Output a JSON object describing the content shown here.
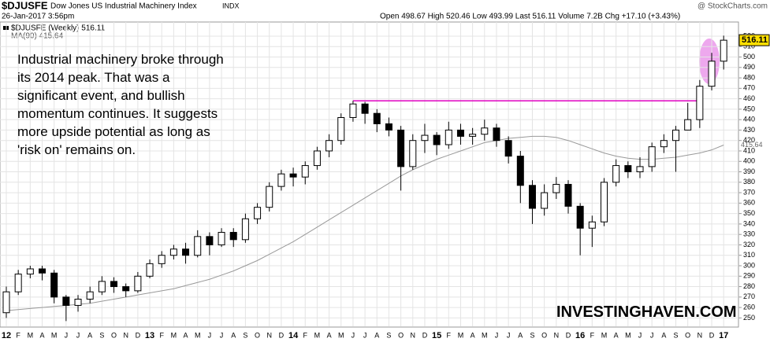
{
  "chart_data": {
    "type": "candlestick",
    "title": "$DJUSFE",
    "subtitle": "Dow Jones US Industrial Machinery Index",
    "exchange": "INDX",
    "date": "26-Jan-2017 3:56pm",
    "quote": "Open 498.67  High 520.46  Low 493.99  Last 516.11  Volume 7.2B  Chg +17.10 (+3.43%)",
    "credit": "@ StockCharts.com",
    "legend": [
      "$DJUSFE (Weekly) 516.11",
      "MA(90) 415.64"
    ],
    "annotation": [
      "Industrial machinery broke through",
      "its 2014 peak. That was a",
      "significant event, and bullish",
      "momentum continues. It suggests",
      "more upside potential as long as",
      "'risk on' remains on."
    ],
    "watermark": "INVESTINGHAVEN.COM",
    "categories": [
      "12",
      "F",
      "M",
      "A",
      "M",
      "J",
      "J",
      "A",
      "S",
      "O",
      "N",
      "D",
      "13",
      "F",
      "M",
      "A",
      "M",
      "J",
      "J",
      "A",
      "S",
      "O",
      "N",
      "D",
      "14",
      "F",
      "M",
      "A",
      "M",
      "J",
      "J",
      "A",
      "S",
      "O",
      "N",
      "D",
      "15",
      "F",
      "M",
      "A",
      "M",
      "J",
      "J",
      "A",
      "S",
      "O",
      "N",
      "D",
      "16",
      "F",
      "M",
      "A",
      "M",
      "J",
      "J",
      "A",
      "S",
      "O",
      "N",
      "D",
      "17"
    ],
    "open": [
      255,
      275,
      292,
      297,
      293,
      270,
      262,
      268,
      275,
      285,
      280,
      276,
      290,
      302,
      310,
      316,
      310,
      328,
      320,
      332,
      325,
      345,
      356,
      376,
      388,
      385,
      396,
      410,
      420,
      442,
      455,
      446,
      436,
      430,
      395,
      420,
      425,
      416,
      430,
      424,
      426,
      432,
      420,
      405,
      377,
      355,
      370,
      378,
      357,
      336,
      342,
      380,
      396,
      390,
      395,
      414,
      420,
      430,
      440,
      472,
      496
    ],
    "high": [
      280,
      296,
      300,
      300,
      296,
      272,
      272,
      280,
      290,
      289,
      283,
      294,
      306,
      314,
      320,
      322,
      334,
      332,
      336,
      336,
      350,
      360,
      380,
      392,
      394,
      400,
      414,
      426,
      446,
      458,
      457,
      450,
      442,
      434,
      426,
      436,
      428,
      438,
      436,
      432,
      440,
      436,
      424,
      410,
      382,
      378,
      385,
      382,
      360,
      348,
      384,
      402,
      400,
      404,
      418,
      426,
      434,
      456,
      478,
      504,
      520.46
    ],
    "low": [
      250,
      272,
      288,
      286,
      264,
      247,
      256,
      264,
      272,
      274,
      270,
      274,
      288,
      298,
      306,
      302,
      308,
      310,
      318,
      318,
      322,
      340,
      352,
      372,
      376,
      378,
      392,
      404,
      416,
      438,
      436,
      428,
      424,
      372,
      392,
      408,
      406,
      412,
      416,
      416,
      420,
      414,
      398,
      360,
      340,
      348,
      364,
      350,
      310,
      318,
      338,
      376,
      384,
      384,
      390,
      408,
      390,
      430,
      432,
      468,
      488
    ],
    "close": [
      275,
      292,
      297,
      293,
      270,
      262,
      268,
      275,
      285,
      280,
      276,
      290,
      302,
      310,
      316,
      310,
      328,
      320,
      332,
      325,
      345,
      356,
      376,
      388,
      385,
      396,
      410,
      420,
      442,
      455,
      446,
      436,
      430,
      395,
      420,
      425,
      416,
      430,
      424,
      426,
      432,
      420,
      405,
      377,
      355,
      370,
      378,
      357,
      336,
      342,
      380,
      396,
      390,
      395,
      414,
      420,
      430,
      440,
      472,
      496,
      516.11
    ],
    "ma": [
      257,
      258,
      259,
      260,
      261,
      262,
      263,
      264,
      266,
      268,
      270,
      272,
      274,
      276,
      278,
      281,
      284,
      287,
      291,
      295,
      300,
      305,
      311,
      317,
      323,
      330,
      337,
      344,
      351,
      358,
      365,
      372,
      379,
      386,
      392,
      397,
      402,
      406,
      410,
      414,
      418,
      420,
      422,
      423,
      424,
      424,
      423,
      420,
      416,
      412,
      408,
      405,
      403,
      402,
      402,
      403,
      404,
      406,
      408,
      411,
      415.64
    ],
    "up_color": "#000000",
    "down_color": "#000000",
    "ma_color": "#999999",
    "level": 458,
    "level_color": "#e000c0",
    "ylim": [
      242,
      526
    ],
    "yticks": [
      250,
      260,
      270,
      280,
      290,
      300,
      310,
      320,
      330,
      340,
      350,
      360,
      370,
      380,
      390,
      400,
      410,
      420,
      430,
      440,
      450,
      460,
      470,
      480,
      490,
      500,
      510,
      520
    ],
    "grid": true
  }
}
